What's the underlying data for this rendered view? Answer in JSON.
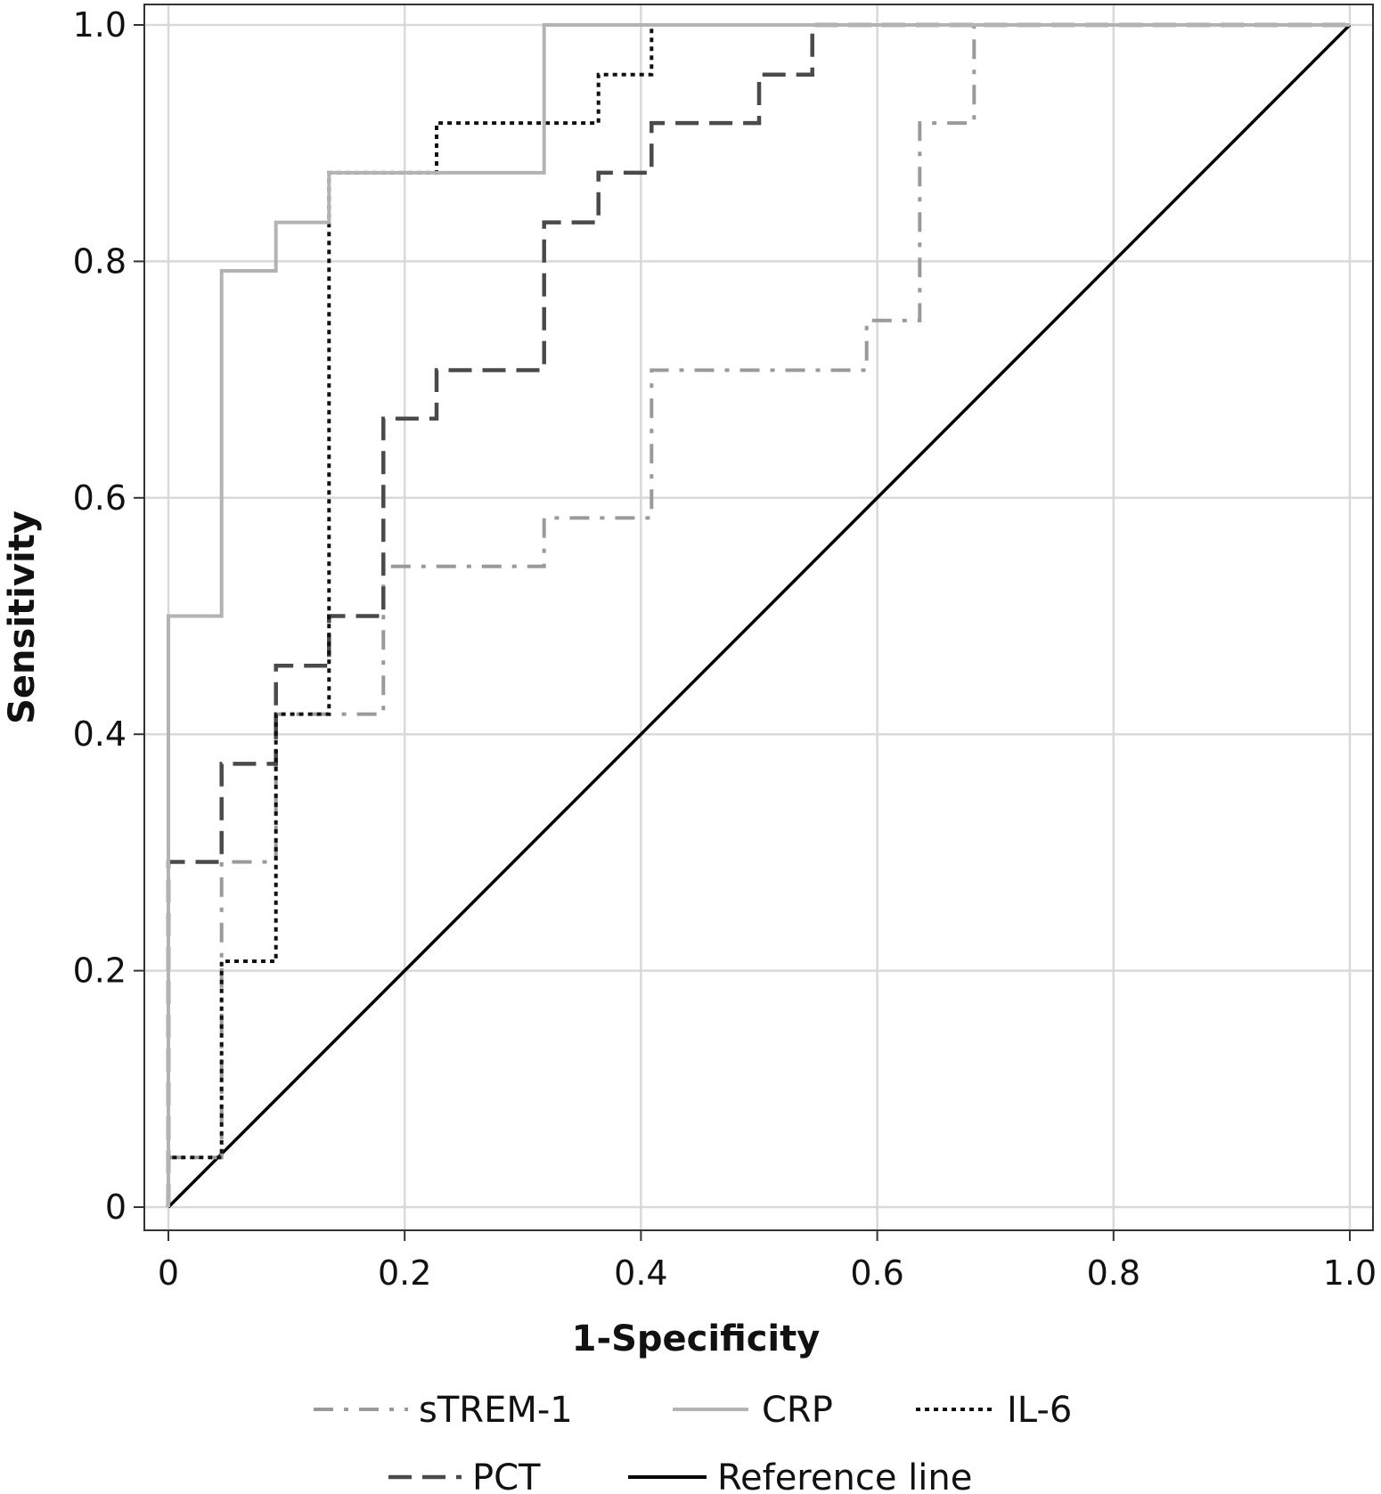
{
  "chart_data": {
    "type": "line",
    "title": "",
    "xlabel": "1-Specificity",
    "ylabel": "Sensitivity",
    "xlim": [
      0,
      1.0
    ],
    "ylim": [
      0,
      1.0
    ],
    "grid": true,
    "legend_position": "bottom",
    "x_ticks": [
      {
        "value": 0,
        "label": "0"
      },
      {
        "value": 0.2,
        "label": "0.2"
      },
      {
        "value": 0.4,
        "label": "0.4"
      },
      {
        "value": 0.6,
        "label": "0.6"
      },
      {
        "value": 0.8,
        "label": "0.8"
      },
      {
        "value": 1.0,
        "label": "1.0"
      }
    ],
    "y_ticks": [
      {
        "value": 0,
        "label": "0"
      },
      {
        "value": 0.2,
        "label": "0.2"
      },
      {
        "value": 0.4,
        "label": "0.4"
      },
      {
        "value": 0.6,
        "label": "0.6"
      },
      {
        "value": 0.8,
        "label": "0.8"
      },
      {
        "value": 1.0,
        "label": "1.0"
      }
    ],
    "series": [
      {
        "name": "sTREM-1",
        "key": "strem1",
        "color": "#9a9a9a",
        "style": "dashdot",
        "points": [
          [
            0,
            0
          ],
          [
            0,
            0.042
          ],
          [
            0,
            0.042
          ],
          [
            0.045,
            0.042
          ],
          [
            0.045,
            0.208
          ],
          [
            0.045,
            0.292
          ],
          [
            0.091,
            0.292
          ],
          [
            0.091,
            0.417
          ],
          [
            0.182,
            0.417
          ],
          [
            0.182,
            0.542
          ],
          [
            0.318,
            0.542
          ],
          [
            0.318,
            0.583
          ],
          [
            0.409,
            0.583
          ],
          [
            0.409,
            0.708
          ],
          [
            0.591,
            0.708
          ],
          [
            0.591,
            0.75
          ],
          [
            0.636,
            0.75
          ],
          [
            0.636,
            0.917
          ],
          [
            0.682,
            0.917
          ],
          [
            0.682,
            1.0
          ],
          [
            1.0,
            1.0
          ]
        ]
      },
      {
        "name": "CRP",
        "key": "crp",
        "color": "#b3b3b3",
        "style": "solid",
        "points": [
          [
            0,
            0
          ],
          [
            0,
            0.5
          ],
          [
            0.045,
            0.5
          ],
          [
            0.045,
            0.792
          ],
          [
            0.091,
            0.792
          ],
          [
            0.091,
            0.833
          ],
          [
            0.136,
            0.833
          ],
          [
            0.136,
            0.875
          ],
          [
            0.318,
            0.875
          ],
          [
            0.318,
            1.0
          ],
          [
            1.0,
            1.0
          ]
        ]
      },
      {
        "name": "IL-6",
        "key": "il6",
        "color": "#111111",
        "style": "dotted",
        "points": [
          [
            0,
            0
          ],
          [
            0,
            0.042
          ],
          [
            0.045,
            0.042
          ],
          [
            0.045,
            0.208
          ],
          [
            0.091,
            0.208
          ],
          [
            0.091,
            0.417
          ],
          [
            0.136,
            0.417
          ],
          [
            0.136,
            0.875
          ],
          [
            0.227,
            0.875
          ],
          [
            0.227,
            0.917
          ],
          [
            0.364,
            0.917
          ],
          [
            0.364,
            0.958
          ],
          [
            0.409,
            0.958
          ],
          [
            0.409,
            1.0
          ],
          [
            1.0,
            1.0
          ]
        ]
      },
      {
        "name": "PCT",
        "key": "pct",
        "color": "#4a4a4a",
        "style": "dashed",
        "points": [
          [
            0,
            0
          ],
          [
            0,
            0.292
          ],
          [
            0.045,
            0.292
          ],
          [
            0.045,
            0.375
          ],
          [
            0.091,
            0.375
          ],
          [
            0.091,
            0.458
          ],
          [
            0.136,
            0.458
          ],
          [
            0.136,
            0.5
          ],
          [
            0.182,
            0.5
          ],
          [
            0.182,
            0.667
          ],
          [
            0.227,
            0.667
          ],
          [
            0.227,
            0.708
          ],
          [
            0.318,
            0.708
          ],
          [
            0.318,
            0.833
          ],
          [
            0.364,
            0.833
          ],
          [
            0.364,
            0.875
          ],
          [
            0.409,
            0.875
          ],
          [
            0.409,
            0.917
          ],
          [
            0.5,
            0.917
          ],
          [
            0.5,
            0.958
          ],
          [
            0.545,
            0.958
          ],
          [
            0.545,
            1.0
          ],
          [
            1.0,
            1.0
          ]
        ]
      },
      {
        "name": "Reference line",
        "key": "reference",
        "color": "#000000",
        "style": "solid",
        "points": [
          [
            0,
            0
          ],
          [
            1.0,
            1.0
          ]
        ]
      }
    ]
  }
}
